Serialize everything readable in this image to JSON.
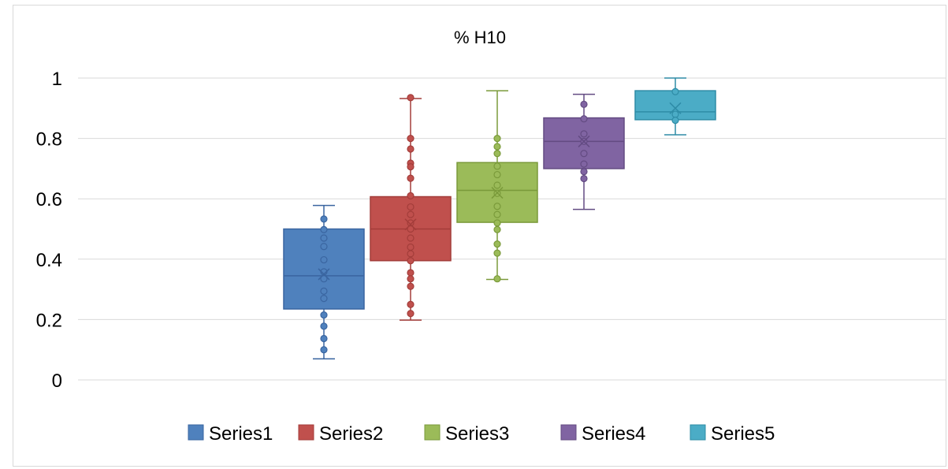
{
  "chart_data": {
    "type": "box",
    "title": "% H10",
    "xlabel": "",
    "ylabel": "",
    "ylim": [
      0,
      1
    ],
    "y_ticks": [
      "0",
      "0.2",
      "0.4",
      "0.6",
      "0.8",
      "1"
    ],
    "y_tick_values": [
      0,
      0.2,
      0.4,
      0.6,
      0.8,
      1
    ],
    "grid": "horizontal",
    "legend_position": "bottom",
    "series": [
      {
        "name": "Series1",
        "color": "#4f81bd",
        "edge": "#3a65a0",
        "min": 0.07,
        "q1": 0.235,
        "median": 0.345,
        "q3": 0.5,
        "max": 0.578,
        "mean": 0.35,
        "points": [
          0.533,
          0.498,
          0.47,
          0.442,
          0.398,
          0.358,
          0.335,
          0.294,
          0.27,
          0.215,
          0.178,
          0.137,
          0.1
        ]
      },
      {
        "name": "Series2",
        "color": "#c0504d",
        "edge": "#a33d3a",
        "min": 0.198,
        "q1": 0.395,
        "median": 0.5,
        "q3": 0.607,
        "max": 0.932,
        "mean": 0.515,
        "points": [
          0.935,
          0.8,
          0.765,
          0.718,
          0.706,
          0.668,
          0.61,
          0.573,
          0.548,
          0.52,
          0.5,
          0.47,
          0.44,
          0.418,
          0.395,
          0.355,
          0.335,
          0.31,
          0.25,
          0.22
        ]
      },
      {
        "name": "Series3",
        "color": "#9bbb59",
        "edge": "#7a9a3a",
        "min": 0.333,
        "q1": 0.522,
        "median": 0.628,
        "q3": 0.72,
        "max": 0.958,
        "mean": 0.62,
        "points": [
          0.8,
          0.773,
          0.75,
          0.708,
          0.68,
          0.645,
          0.618,
          0.575,
          0.548,
          0.52,
          0.498,
          0.45,
          0.42,
          0.335
        ]
      },
      {
        "name": "Series4",
        "color": "#8064a2",
        "edge": "#634b82",
        "min": 0.565,
        "q1": 0.7,
        "median": 0.79,
        "q3": 0.868,
        "max": 0.946,
        "mean": 0.79,
        "points": [
          0.913,
          0.865,
          0.815,
          0.79,
          0.75,
          0.715,
          0.69,
          0.667
        ]
      },
      {
        "name": "Series5",
        "color": "#4bacc6",
        "edge": "#2e8ca6",
        "min": 0.812,
        "q1": 0.862,
        "median": 0.888,
        "q3": 0.958,
        "max": 1.0,
        "mean": 0.9,
        "points": [
          0.955,
          0.88,
          0.86
        ]
      }
    ]
  }
}
